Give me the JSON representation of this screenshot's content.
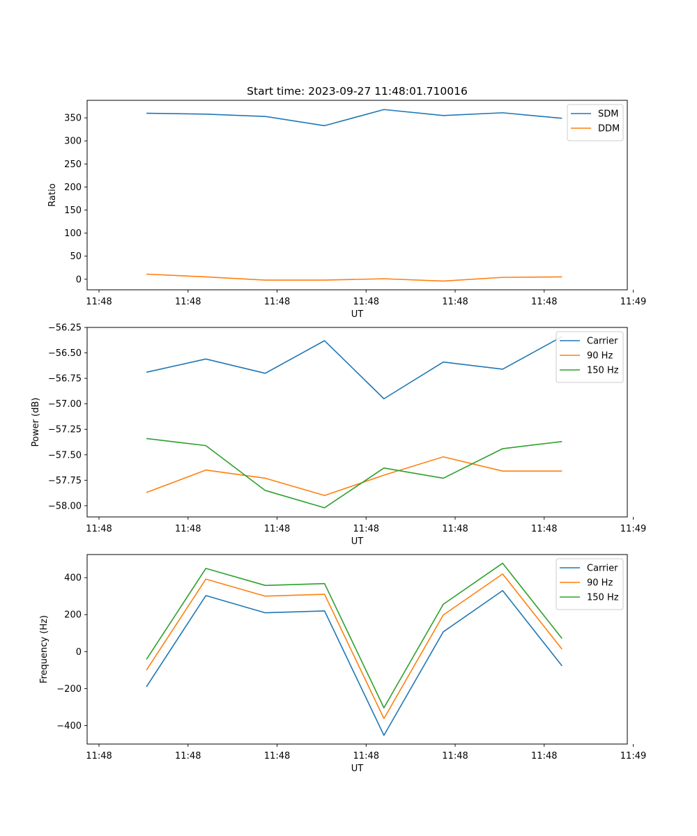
{
  "figure": {
    "title": "Start time: 2023-09-27 11:48:01.710016"
  },
  "chart_data": [
    {
      "type": "line",
      "title": "Start time: 2023-09-27 11:48:01.710016",
      "xlabel": "UT",
      "ylabel": "Ratio",
      "x": [
        1,
        2,
        3,
        4,
        5,
        6,
        7,
        8
      ],
      "xlim": [
        0,
        9.1
      ],
      "x_ticks": [
        0.2,
        1.7,
        3.2,
        4.7,
        6.2,
        7.7,
        9.2
      ],
      "x_tick_labels": [
        "11:48",
        "11:48",
        "11:48",
        "11:48",
        "11:48",
        "11:48",
        "11:49"
      ],
      "ylim": [
        -23,
        388
      ],
      "y_ticks": [
        0,
        50,
        100,
        150,
        200,
        250,
        300,
        350
      ],
      "y_tick_labels": [
        "0",
        "50",
        "100",
        "150",
        "200",
        "250",
        "300",
        "350"
      ],
      "legend_position": "top-right",
      "series": [
        {
          "name": "SDM",
          "color": "#1f77b4",
          "values": [
            360,
            358,
            353,
            333,
            368,
            355,
            361,
            349
          ]
        },
        {
          "name": "DDM",
          "color": "#ff7f0e",
          "values": [
            11,
            5,
            -2,
            -2,
            1,
            -4,
            4,
            5
          ]
        }
      ]
    },
    {
      "type": "line",
      "title": "",
      "xlabel": "UT",
      "ylabel": "Power (dB)",
      "x": [
        1,
        2,
        3,
        4,
        5,
        6,
        7,
        8
      ],
      "xlim": [
        0,
        9.1
      ],
      "x_ticks": [
        0.2,
        1.7,
        3.2,
        4.7,
        6.2,
        7.7,
        9.2
      ],
      "x_tick_labels": [
        "11:48",
        "11:48",
        "11:48",
        "11:48",
        "11:48",
        "11:48",
        "11:49"
      ],
      "ylim": [
        -58.11,
        -56.25
      ],
      "y_ticks": [
        -56.25,
        -56.5,
        -56.75,
        -57.0,
        -57.25,
        -57.5,
        -57.75,
        -58.0
      ],
      "y_tick_labels": [
        "−56.25",
        "−56.50",
        "−56.75",
        "−57.00",
        "−57.25",
        "−57.50",
        "−57.75",
        "−58.00"
      ],
      "legend_position": "top-right",
      "series": [
        {
          "name": "Carrier",
          "color": "#1f77b4",
          "values": [
            -56.69,
            -56.56,
            -56.7,
            -56.38,
            -56.95,
            -56.59,
            -56.66,
            -56.34
          ]
        },
        {
          "name": "90 Hz",
          "color": "#ff7f0e",
          "values": [
            -57.87,
            -57.65,
            -57.73,
            -57.9,
            -57.7,
            -57.52,
            -57.66,
            -57.66
          ]
        },
        {
          "name": "150 Hz",
          "color": "#2ca02c",
          "values": [
            -57.34,
            -57.41,
            -57.85,
            -58.02,
            -57.63,
            -57.73,
            -57.44,
            -57.37
          ]
        }
      ]
    },
    {
      "type": "line",
      "title": "",
      "xlabel": "UT",
      "ylabel": "Frequency (Hz)",
      "x": [
        1,
        2,
        3,
        4,
        5,
        6,
        7,
        8
      ],
      "xlim": [
        0,
        9.1
      ],
      "x_ticks": [
        0.2,
        1.7,
        3.2,
        4.7,
        6.2,
        7.7,
        9.2
      ],
      "x_tick_labels": [
        "11:48",
        "11:48",
        "11:48",
        "11:48",
        "11:48",
        "11:48",
        "11:49"
      ],
      "ylim": [
        -500,
        525
      ],
      "y_ticks": [
        -400,
        -200,
        0,
        200,
        400
      ],
      "y_tick_labels": [
        "−400",
        "−200",
        "0",
        "200",
        "400"
      ],
      "legend_position": "top-right",
      "series": [
        {
          "name": "Carrier",
          "color": "#1f77b4",
          "values": [
            -190,
            303,
            210,
            220,
            -453,
            107,
            330,
            -77
          ]
        },
        {
          "name": "90 Hz",
          "color": "#ff7f0e",
          "values": [
            -100,
            392,
            300,
            310,
            -362,
            198,
            420,
            13
          ]
        },
        {
          "name": "150 Hz",
          "color": "#2ca02c",
          "values": [
            -42,
            450,
            358,
            368,
            -304,
            256,
            478,
            71
          ]
        }
      ]
    }
  ]
}
